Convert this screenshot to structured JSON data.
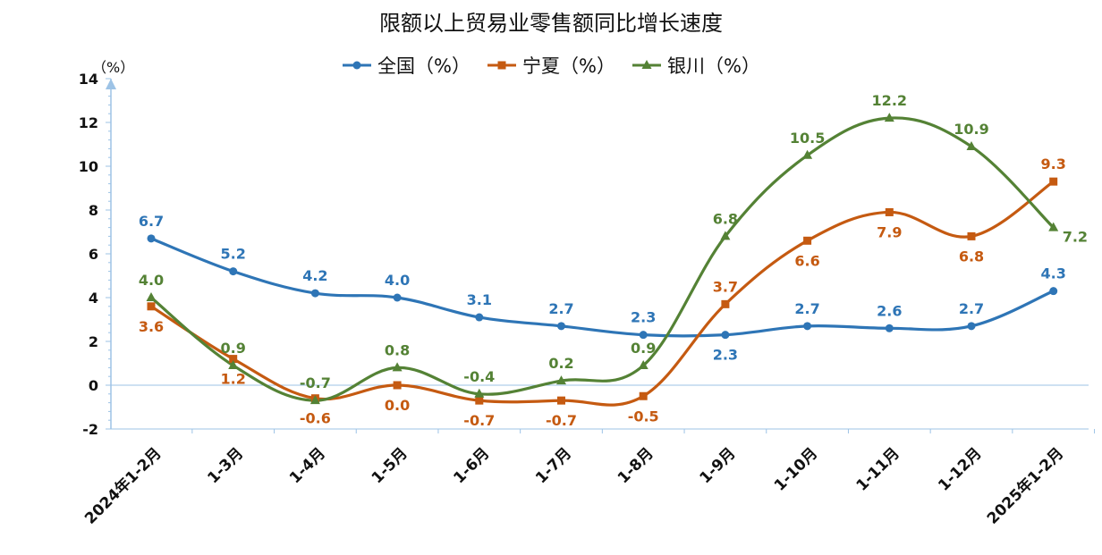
{
  "chart_data": {
    "type": "line",
    "title": "限额以上贸易业零售额同比增长速度",
    "ylabel": "（%）",
    "categories": [
      "2024年1-2月",
      "1-3月",
      "1-4月",
      "1-5月",
      "1-6月",
      "1-7月",
      "1-8月",
      "1-9月",
      "1-10月",
      "1-11月",
      "1-12月",
      "2025年1-2月"
    ],
    "ylim": [
      -2,
      14
    ],
    "yticks": [
      -2,
      0,
      2,
      4,
      6,
      8,
      10,
      12,
      14
    ],
    "grid": false,
    "legend_position": "top",
    "series": [
      {
        "name": "全国（%）",
        "color": "#2E75B6",
        "marker": "circle",
        "values": [
          6.7,
          5.2,
          4.2,
          4.0,
          3.1,
          2.7,
          2.3,
          2.3,
          2.7,
          2.6,
          2.7,
          4.3
        ],
        "label_pos": [
          "above",
          "above",
          "above",
          "above",
          "above",
          "above",
          "above",
          "below",
          "above",
          "above",
          "above",
          "above"
        ]
      },
      {
        "name": "宁夏（%）",
        "color": "#C55A11",
        "marker": "square",
        "values": [
          3.6,
          1.2,
          -0.6,
          0.0,
          -0.7,
          -0.7,
          -0.5,
          3.7,
          6.6,
          7.9,
          6.8,
          9.3
        ],
        "label_pos": [
          "below",
          "below",
          "below",
          "below",
          "below",
          "below",
          "below",
          "above",
          "below",
          "below",
          "below",
          "above"
        ]
      },
      {
        "name": "银川（%）",
        "color": "#548235",
        "marker": "triangle",
        "values": [
          4.0,
          0.9,
          -0.7,
          0.8,
          -0.4,
          0.2,
          0.9,
          6.8,
          10.5,
          12.2,
          10.9,
          7.2
        ],
        "label_pos": [
          "above",
          "above",
          "above",
          "above",
          "above",
          "above",
          "above",
          "above",
          "above",
          "above",
          "above",
          "right"
        ]
      }
    ]
  }
}
